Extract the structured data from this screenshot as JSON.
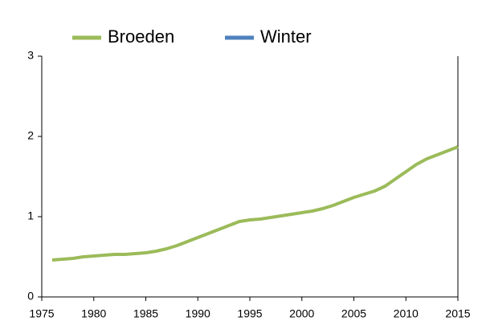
{
  "chart_data": {
    "type": "line",
    "x": [
      1976,
      1977,
      1978,
      1979,
      1980,
      1981,
      1982,
      1983,
      1984,
      1985,
      1986,
      1987,
      1988,
      1989,
      1990,
      1991,
      1992,
      1993,
      1994,
      1995,
      1996,
      1997,
      1998,
      1999,
      2000,
      2001,
      2002,
      2003,
      2004,
      2005,
      2006,
      2007,
      2008,
      2009,
      2010,
      2011,
      2012,
      2013,
      2014,
      2015
    ],
    "series": [
      {
        "name": "Broeden",
        "color": "#9bbb59",
        "values": [
          0.46,
          0.47,
          0.48,
          0.5,
          0.51,
          0.52,
          0.53,
          0.53,
          0.54,
          0.55,
          0.57,
          0.6,
          0.64,
          0.69,
          0.74,
          0.79,
          0.84,
          0.89,
          0.94,
          0.96,
          0.97,
          0.99,
          1.01,
          1.03,
          1.05,
          1.07,
          1.1,
          1.14,
          1.19,
          1.24,
          1.28,
          1.32,
          1.38,
          1.47,
          1.56,
          1.65,
          1.72,
          1.77,
          1.82,
          1.87
        ]
      },
      {
        "name": "Winter",
        "color": "#4f81bd",
        "values": [
          null,
          null,
          null,
          null,
          null,
          null,
          null,
          null,
          null,
          null,
          null,
          null,
          null,
          null,
          null,
          null,
          null,
          null,
          null,
          null,
          null,
          null,
          null,
          null,
          null,
          null,
          null,
          null,
          null,
          null,
          null,
          null,
          null,
          null,
          null,
          null,
          null,
          null,
          null,
          null
        ]
      }
    ],
    "xlim": [
      1975,
      2015
    ],
    "xticks": [
      1975,
      1980,
      1985,
      1990,
      1995,
      2000,
      2005,
      2010,
      2015
    ],
    "ylim": [
      0,
      3
    ],
    "yticks": [
      0,
      1,
      2,
      3
    ],
    "legend": "top"
  }
}
